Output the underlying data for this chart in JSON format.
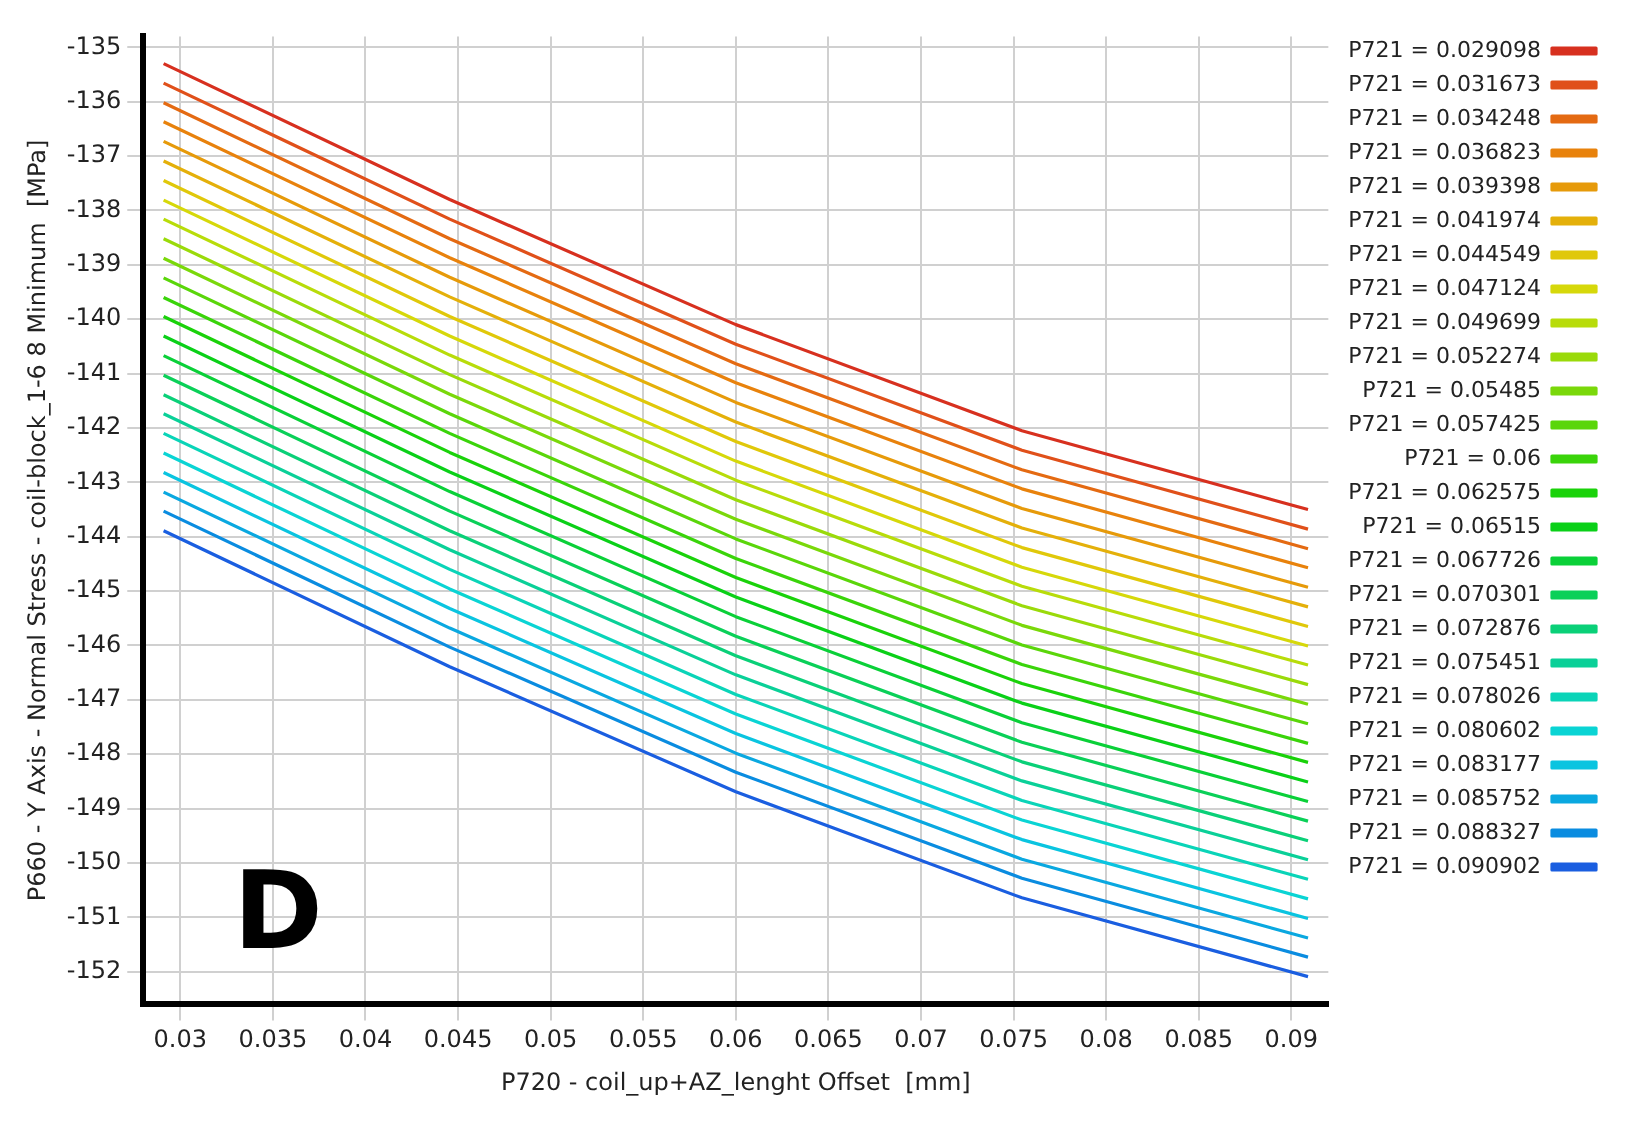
{
  "chart_data": {
    "type": "line",
    "xlabel": "P720 - coil_up+AZ_lenght Offset  [mm]",
    "ylabel": "P660 - Y Axis - Normal Stress - coil-block_1-6 8 Minimum  [MPa]",
    "annotations": [
      "D"
    ],
    "x": [
      0.029098,
      0.044549,
      0.06,
      0.075451,
      0.090902
    ],
    "xlim": [
      0.028,
      0.092
    ],
    "xticks": [
      0.03,
      0.035,
      0.04,
      0.045,
      0.05,
      0.055,
      0.06,
      0.065,
      0.07,
      0.075,
      0.08,
      0.085,
      0.09
    ],
    "ylim": [
      -152.6,
      -134.8
    ],
    "yticks": [
      -152,
      -151,
      -150,
      -149,
      -148,
      -147,
      -146,
      -145,
      -144,
      -143,
      -142,
      -141,
      -140,
      -139,
      -138,
      -137,
      -136,
      -135
    ],
    "grid": true,
    "legend": "right",
    "marker": "none",
    "line_style": "solid",
    "series": [
      {
        "name": "P721 = 0.029098",
        "color": "#d7301f",
        "values": [
          -135.3,
          -137.8,
          -140.1,
          -142.05,
          -143.5
        ]
      },
      {
        "name": "P721 = 0.031673",
        "color": "#e0501a",
        "values": [
          -135.66,
          -138.16,
          -140.46,
          -142.41,
          -143.86
        ]
      },
      {
        "name": "P721 = 0.034248",
        "color": "#e46a12",
        "values": [
          -136.02,
          -138.52,
          -140.82,
          -142.77,
          -144.22
        ]
      },
      {
        "name": "P721 = 0.036823",
        "color": "#e8820c",
        "values": [
          -136.37,
          -138.87,
          -141.17,
          -143.12,
          -144.57
        ]
      },
      {
        "name": "P721 = 0.039398",
        "color": "#e69a0a",
        "values": [
          -136.73,
          -139.23,
          -141.53,
          -143.48,
          -144.93
        ]
      },
      {
        "name": "P721 = 0.041974",
        "color": "#e4b00a",
        "values": [
          -137.09,
          -139.59,
          -141.89,
          -143.84,
          -145.29
        ]
      },
      {
        "name": "P721 = 0.044549",
        "color": "#e0c80a",
        "values": [
          -137.45,
          -139.95,
          -142.25,
          -144.2,
          -145.65
        ]
      },
      {
        "name": "P721 = 0.047124",
        "color": "#d6d80a",
        "values": [
          -137.81,
          -140.31,
          -142.61,
          -144.56,
          -146.01
        ]
      },
      {
        "name": "P721 = 0.049699",
        "color": "#b8dc0a",
        "values": [
          -138.16,
          -140.66,
          -142.96,
          -144.91,
          -146.36
        ]
      },
      {
        "name": "P721 = 0.052274",
        "color": "#9ada0a",
        "values": [
          -138.52,
          -141.02,
          -143.32,
          -145.27,
          -146.72
        ]
      },
      {
        "name": "P721 = 0.05485",
        "color": "#7ad80a",
        "values": [
          -138.88,
          -141.38,
          -143.68,
          -145.63,
          -147.08
        ]
      },
      {
        "name": "P721 = 0.057425",
        "color": "#5ad60a",
        "values": [
          -139.24,
          -141.74,
          -144.04,
          -145.99,
          -147.44
        ]
      },
      {
        "name": "P721 = 0.06",
        "color": "#3ad40a",
        "values": [
          -139.6,
          -142.1,
          -144.4,
          -146.35,
          -147.8
        ]
      },
      {
        "name": "P721 = 0.062575",
        "color": "#1ad20a",
        "values": [
          -139.95,
          -142.45,
          -144.75,
          -146.7,
          -148.15
        ]
      },
      {
        "name": "P721 = 0.06515",
        "color": "#0ad018",
        "values": [
          -140.31,
          -142.81,
          -145.11,
          -147.06,
          -148.51
        ]
      },
      {
        "name": "P721 = 0.067726",
        "color": "#0ad038",
        "values": [
          -140.67,
          -143.17,
          -145.47,
          -147.42,
          -148.87
        ]
      },
      {
        "name": "P721 = 0.070301",
        "color": "#0ad058",
        "values": [
          -141.03,
          -143.53,
          -145.83,
          -147.78,
          -149.23
        ]
      },
      {
        "name": "P721 = 0.072876",
        "color": "#0ad078",
        "values": [
          -141.39,
          -143.89,
          -146.19,
          -148.14,
          -149.59
        ]
      },
      {
        "name": "P721 = 0.075451",
        "color": "#0ad098",
        "values": [
          -141.74,
          -144.24,
          -146.54,
          -148.49,
          -149.94
        ]
      },
      {
        "name": "P721 = 0.078026",
        "color": "#0ad4b8",
        "values": [
          -142.1,
          -144.6,
          -146.9,
          -148.85,
          -150.3
        ]
      },
      {
        "name": "P721 = 0.080602",
        "color": "#0ad4d4",
        "values": [
          -142.46,
          -144.96,
          -147.26,
          -149.21,
          -150.66
        ]
      },
      {
        "name": "P721 = 0.083177",
        "color": "#0ac4e0",
        "values": [
          -142.82,
          -145.32,
          -147.62,
          -149.57,
          -151.02
        ]
      },
      {
        "name": "P721 = 0.085752",
        "color": "#0aa8e0",
        "values": [
          -143.18,
          -145.68,
          -147.98,
          -149.93,
          -151.38
        ]
      },
      {
        "name": "P721 = 0.088327",
        "color": "#0a8ce0",
        "values": [
          -143.53,
          -146.03,
          -148.33,
          -150.28,
          -151.73
        ]
      },
      {
        "name": "P721 = 0.090902",
        "color": "#1a5ee0",
        "values": [
          -143.89,
          -146.39,
          -148.69,
          -150.64,
          -152.09
        ]
      }
    ]
  }
}
